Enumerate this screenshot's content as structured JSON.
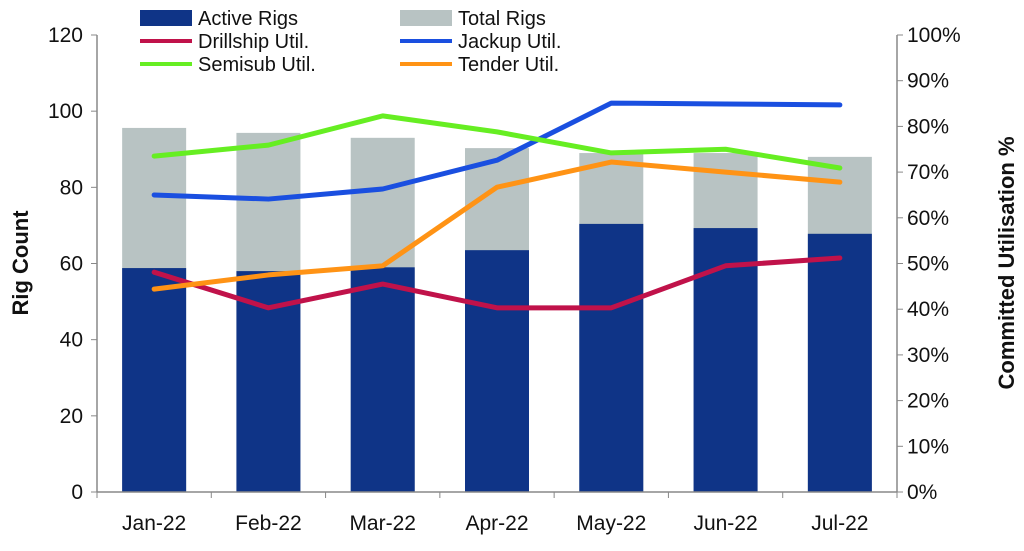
{
  "chart_data": {
    "type": "bar",
    "title": "",
    "categories": [
      "Jan-22",
      "Feb-22",
      "Mar-22",
      "Apr-22",
      "May-22",
      "Jun-22",
      "Jul-22"
    ],
    "ylabel": "Rig Count",
    "y2label": "Committed Utilisation %",
    "ylim": [
      0,
      120
    ],
    "yticks": [
      0,
      20,
      40,
      60,
      80,
      100,
      120
    ],
    "y2lim": [
      0,
      100
    ],
    "y2ticks": [
      "0%",
      "10%",
      "20%",
      "30%",
      "40%",
      "50%",
      "60%",
      "70%",
      "80%",
      "90%",
      "100%"
    ],
    "grid": false,
    "legend": "top",
    "bars": [
      {
        "name": "Total Rigs",
        "color": "#b8c3c3",
        "values": [
          95.6,
          94.3,
          93,
          90.3,
          89,
          89,
          88
        ]
      },
      {
        "name": "Active Rigs",
        "color": "#0f3487",
        "values": [
          58.8,
          58,
          59,
          63.5,
          70.4,
          69.3,
          67.8
        ]
      }
    ],
    "lines": [
      {
        "name": "Drillship Util.",
        "color": "#c0124a",
        "values": [
          48.1,
          40.3,
          45.5,
          40.3,
          40.3,
          49.5,
          51.2
        ]
      },
      {
        "name": "Jackup Util.",
        "color": "#1a4fe0",
        "values": [
          65,
          64.1,
          66.3,
          72.6,
          85.1,
          84.9,
          84.7
        ]
      },
      {
        "name": "Semisub Util.",
        "color": "#66ee22",
        "values": [
          73.5,
          75.9,
          82.3,
          78.8,
          74.2,
          75,
          70.9
        ]
      },
      {
        "name": "Tender Util.",
        "color": "#ff9315",
        "values": [
          44.4,
          47.5,
          49.5,
          66.7,
          72.2,
          70,
          67.8
        ]
      }
    ]
  }
}
